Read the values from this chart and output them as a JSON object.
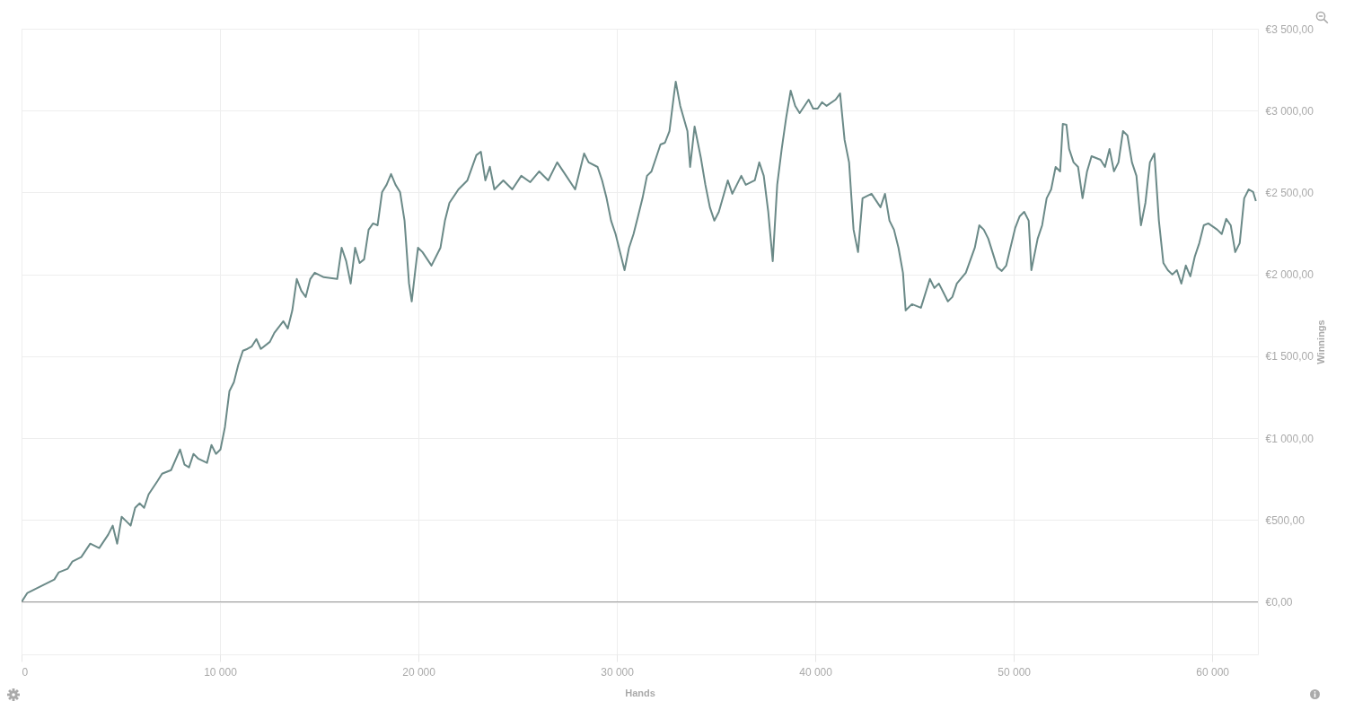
{
  "chart_data": {
    "type": "line",
    "xlabel": "Hands",
    "ylabel": "Winnings",
    "xlim": [
      0,
      62300
    ],
    "ylim": [
      -320,
      3500
    ],
    "xticks": [
      {
        "value": 0,
        "label": "0"
      },
      {
        "value": 10000,
        "label": "10 000"
      },
      {
        "value": 20000,
        "label": "20 000"
      },
      {
        "value": 30000,
        "label": "30 000"
      },
      {
        "value": 40000,
        "label": "40 000"
      },
      {
        "value": 50000,
        "label": "50 000"
      },
      {
        "value": 60000,
        "label": "60 000"
      }
    ],
    "yticks": [
      {
        "value": 0,
        "label": "€0,00"
      },
      {
        "value": 500,
        "label": "€500,00"
      },
      {
        "value": 1000,
        "label": "€1 000,00"
      },
      {
        "value": 1500,
        "label": "€1 500,00"
      },
      {
        "value": 2000,
        "label": "€2 000,00"
      },
      {
        "value": 2500,
        "label": "€2 500,00"
      },
      {
        "value": 3000,
        "label": "€3 000,00"
      },
      {
        "value": 3500,
        "label": "€3 500,00"
      }
    ],
    "grid": true,
    "ref_lines": [
      {
        "axis": "y",
        "value": 0,
        "color": "#999999"
      }
    ],
    "x": [
      0,
      294,
      747,
      1199,
      1652,
      1878,
      2104,
      2330,
      2557,
      3009,
      3462,
      3914,
      4367,
      4593,
      4819,
      5045,
      5272,
      5498,
      5724,
      5950,
      6177,
      6403,
      6855,
      7082,
      7534,
      7987,
      8213,
      8439,
      8665,
      8892,
      9344,
      9570,
      9796,
      10023,
      10249,
      10475,
      10701,
      10928,
      11154,
      11380,
      11606,
      11833,
      12059,
      12512,
      12738,
      13190,
      13416,
      13643,
      13869,
      14095,
      14321,
      14548,
      14774,
      15226,
      15905,
      16131,
      16358,
      16584,
      16810,
      17036,
      17263,
      17489,
      17715,
      17941,
      18168,
      18394,
      18620,
      18846,
      19073,
      19299,
      19525,
      19661,
      19842,
      19978,
      20204,
      20656,
      21109,
      21335,
      21561,
      22014,
      22466,
      22919,
      23145,
      23371,
      23597,
      23824,
      24276,
      24729,
      25181,
      25634,
      26086,
      26539,
      26991,
      27444,
      27896,
      28348,
      28575,
      29027,
      29254,
      29480,
      29706,
      29933,
      30159,
      30385,
      30611,
      30838,
      31064,
      31290,
      31517,
      31743,
      31969,
      32195,
      32422,
      32648,
      32874,
      32965,
      33191,
      33553,
      33689,
      33915,
      34232,
      34458,
      34684,
      34911,
      35137,
      35589,
      35816,
      36042,
      36268,
      36494,
      36947,
      37173,
      37400,
      37626,
      37852,
      38078,
      38305,
      38531,
      38757,
      38984,
      39210,
      39662,
      39889,
      40115,
      40341,
      40567,
      41020,
      41246,
      41473,
      41699,
      41925,
      42151,
      42378,
      42830,
      43283,
      43509,
      43735,
      43962,
      44188,
      44414,
      44550,
      44867,
      45319,
      45772,
      45998,
      46224,
      46451,
      46677,
      46903,
      47129,
      47582,
      48035,
      48261,
      48487,
      48713,
      49166,
      49392,
      49618,
      50071,
      50297,
      50523,
      50750,
      50885,
      51202,
      51428,
      51655,
      51881,
      52107,
      52333,
      52469,
      52650,
      52786,
      53012,
      53238,
      53464,
      53691,
      53917,
      54369,
      54596,
      54822,
      55048,
      55274,
      55501,
      55727,
      55953,
      56179,
      56406,
      56632,
      56858,
      57084,
      57311,
      57537,
      57763,
      57989,
      58216,
      58442,
      58668,
      58895,
      59121,
      59347,
      59573,
      59800,
      60252,
      60478,
      60705,
      60931,
      61157,
      61383,
      61610,
      61836,
      62062,
      62198
    ],
    "series": [
      {
        "color": "#6b8a88",
        "values": [
          0,
          55,
          82,
          110,
          137,
          181,
          192,
          203,
          246,
          274,
          356,
          329,
          411,
          466,
          356,
          520,
          493,
          466,
          575,
          602,
          575,
          657,
          739,
          783,
          805,
          931,
          838,
          822,
          904,
          876,
          849,
          958,
          904,
          931,
          1068,
          1287,
          1342,
          1451,
          1534,
          1545,
          1561,
          1605,
          1545,
          1588,
          1643,
          1714,
          1670,
          1780,
          1972,
          1900,
          1862,
          1972,
          2010,
          1983,
          1972,
          2163,
          2081,
          1944,
          2163,
          2070,
          2092,
          2273,
          2311,
          2300,
          2503,
          2547,
          2613,
          2547,
          2503,
          2328,
          1944,
          1835,
          2026,
          2163,
          2136,
          2054,
          2163,
          2328,
          2437,
          2519,
          2574,
          2728,
          2749,
          2574,
          2657,
          2519,
          2574,
          2519,
          2602,
          2563,
          2629,
          2574,
          2684,
          2602,
          2519,
          2738,
          2684,
          2656,
          2574,
          2465,
          2328,
          2246,
          2136,
          2026,
          2163,
          2246,
          2355,
          2465,
          2602,
          2629,
          2711,
          2793,
          2804,
          2875,
          3095,
          3177,
          3029,
          2875,
          2656,
          2903,
          2711,
          2547,
          2410,
          2328,
          2382,
          2574,
          2492,
          2547,
          2602,
          2547,
          2574,
          2684,
          2602,
          2382,
          2081,
          2547,
          2766,
          2958,
          3122,
          3029,
          2985,
          3067,
          3012,
          3012,
          3051,
          3029,
          3067,
          3105,
          2821,
          2684,
          2273,
          2136,
          2465,
          2492,
          2410,
          2492,
          2328,
          2273,
          2163,
          2010,
          1780,
          1818,
          1796,
          1972,
          1917,
          1944,
          1890,
          1835,
          1862,
          1944,
          2010,
          2163,
          2300,
          2273,
          2218,
          2043,
          2021,
          2054,
          2284,
          2355,
          2382,
          2328,
          2026,
          2218,
          2300,
          2465,
          2519,
          2656,
          2629,
          2919,
          2914,
          2766,
          2684,
          2656,
          2465,
          2629,
          2722,
          2700,
          2656,
          2766,
          2629,
          2684,
          2875,
          2848,
          2684,
          2602,
          2300,
          2437,
          2684,
          2738,
          2328,
          2070,
          2026,
          1999,
          2026,
          1944,
          2054,
          1988,
          2109,
          2191,
          2300,
          2311,
          2273,
          2246,
          2339,
          2300,
          2136,
          2191,
          2465,
          2519,
          2503,
          2448
        ]
      }
    ]
  }
}
